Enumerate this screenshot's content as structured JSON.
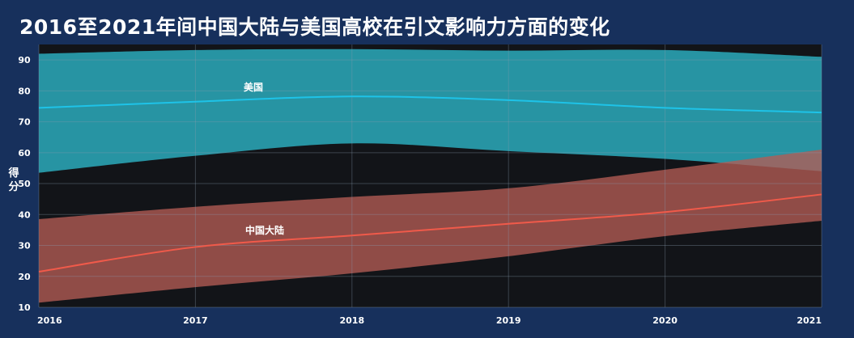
{
  "chart_data": {
    "type": "area",
    "title": "2016至2021年间中国大陆与美国高校在引文影响力方面的变化",
    "ylabel": "得分",
    "xlabel": "",
    "x": [
      2016,
      2017,
      2018,
      2019,
      2020,
      2021
    ],
    "ylim": [
      10,
      95
    ],
    "yticks": [
      10,
      20,
      30,
      40,
      50,
      60,
      70,
      80,
      90
    ],
    "grid": true,
    "series": [
      {
        "name": "美国",
        "color": "#2aa6b6",
        "line_color": "#1ec3e8",
        "values": [
          74.5,
          76.5,
          78.2,
          77,
          74.5,
          73
        ],
        "upper": [
          92,
          93.2,
          93.5,
          93,
          93.2,
          91
        ],
        "lower": [
          53.5,
          59,
          63,
          60.5,
          58,
          54
        ]
      },
      {
        "name": "中国大陆",
        "color": "#b45c55",
        "line_color": "#f05a4a",
        "values": [
          21.5,
          29.5,
          33.2,
          37,
          40.8,
          46.5
        ],
        "upper": [
          38.5,
          42.5,
          45.7,
          48.5,
          54.5,
          61
        ],
        "lower": [
          11.5,
          16.5,
          21,
          26.5,
          33,
          38
        ]
      }
    ]
  }
}
